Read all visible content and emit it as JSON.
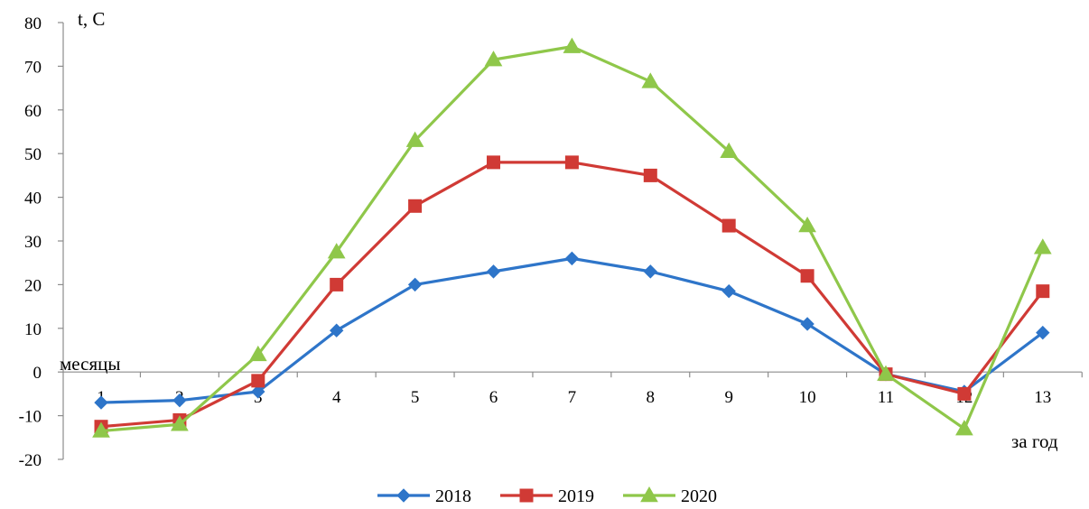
{
  "chart_data": {
    "type": "line",
    "ylabel": "t, C",
    "xlabel_left": "месяцы",
    "xlabel_right": "за год",
    "categories": [
      "1",
      "2",
      "3",
      "4",
      "5",
      "6",
      "7",
      "8",
      "9",
      "10",
      "11",
      "12",
      "13"
    ],
    "ylim": [
      -20,
      80
    ],
    "yticks": [
      "80",
      "70",
      "60",
      "50",
      "40",
      "30",
      "20",
      "10",
      "0",
      "-10",
      "-20"
    ],
    "grid": false,
    "legend_position": "bottom",
    "series": [
      {
        "name": "2018",
        "color": "#2e75c9",
        "marker": "diamond",
        "values": [
          -7,
          -6.5,
          -4.5,
          9.5,
          20,
          23,
          26,
          23,
          18.5,
          11,
          -0.5,
          -4.5,
          9
        ]
      },
      {
        "name": "2019",
        "color": "#d03a35",
        "marker": "square",
        "values": [
          -12.5,
          -11,
          -2,
          20,
          38,
          48,
          48,
          45,
          33.5,
          22,
          -0.5,
          -5,
          18.5
        ]
      },
      {
        "name": "2020",
        "color": "#8fc74a",
        "marker": "triangle",
        "values": [
          -13.5,
          -12,
          4,
          27.5,
          53,
          71.5,
          74.5,
          66.5,
          50.5,
          33.5,
          -0.5,
          -13,
          28.5
        ]
      }
    ]
  }
}
